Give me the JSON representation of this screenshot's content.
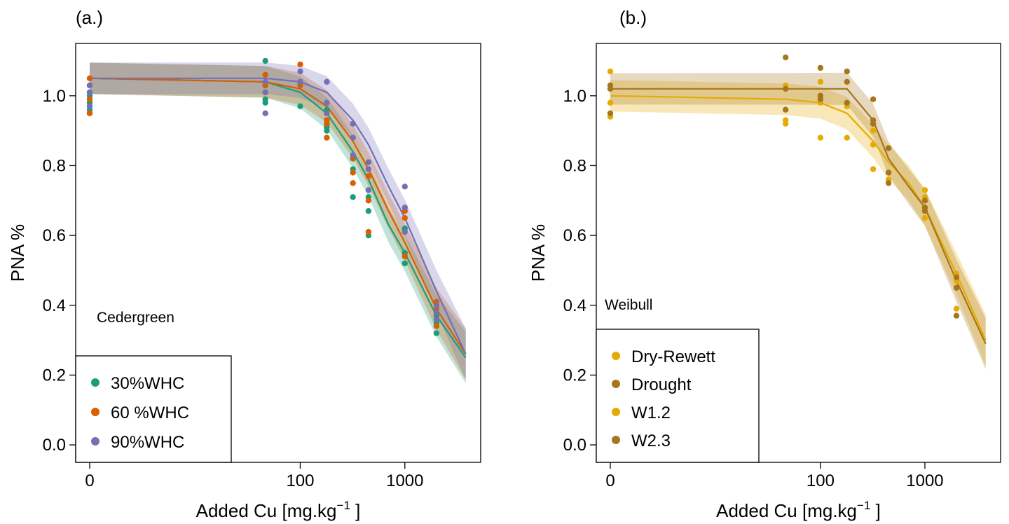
{
  "chart_data": [
    {
      "type": "scatter",
      "panel_label": "(a.)",
      "model_label": "Cedergreen",
      "xlabel": "Added Cu [mg.kg",
      "xlabel_sup": "−1",
      "xlabel_end": " ]",
      "ylabel": "PNA %",
      "x_scale": "log(x+1)",
      "x_ticks": [
        0,
        100,
        1000
      ],
      "x_tick_labels": [
        "0",
        "100",
        "1000"
      ],
      "ylim": [
        -0.05,
        1.15
      ],
      "y_ticks": [
        0.0,
        0.2,
        0.4,
        0.6,
        0.8,
        1.0
      ],
      "y_tick_labels": [
        "0.0",
        "0.2",
        "0.4",
        "0.6",
        "0.8",
        "1.0"
      ],
      "legend_position": "bottom-left",
      "series": [
        {
          "name": "30%WHC",
          "color": "#1b9e77",
          "points": [
            [
              0,
              0.98
            ],
            [
              0,
              0.95
            ],
            [
              0,
              1.0
            ],
            [
              0,
              1.03
            ],
            [
              0,
              1.01
            ],
            [
              0,
              0.96
            ],
            [
              46,
              1.1
            ],
            [
              46,
              1.03
            ],
            [
              46,
              0.99
            ],
            [
              46,
              0.98
            ],
            [
              100,
              0.97
            ],
            [
              100,
              1.03
            ],
            [
              180,
              0.96
            ],
            [
              180,
              0.9
            ],
            [
              180,
              0.91
            ],
            [
              320,
              0.79
            ],
            [
              320,
              0.71
            ],
            [
              320,
              0.82
            ],
            [
              450,
              0.6
            ],
            [
              450,
              0.67
            ],
            [
              450,
              0.71
            ],
            [
              1000,
              0.52
            ],
            [
              1000,
              0.55
            ],
            [
              1000,
              0.62
            ],
            [
              2000,
              0.32
            ],
            [
              2000,
              0.35
            ],
            [
              2000,
              0.37
            ]
          ],
          "fit": [
            [
              0,
              1.05
            ],
            [
              46,
              1.04
            ],
            [
              100,
              1.01
            ],
            [
              180,
              0.95
            ],
            [
              320,
              0.84
            ],
            [
              450,
              0.76
            ],
            [
              700,
              0.63
            ],
            [
              1000,
              0.55
            ],
            [
              2000,
              0.37
            ],
            [
              3800,
              0.25
            ]
          ]
        },
        {
          "name": "60 %WHC",
          "color": "#d95f02",
          "points": [
            [
              0,
              1.05
            ],
            [
              0,
              0.95
            ],
            [
              0,
              0.99
            ],
            [
              46,
              1.06
            ],
            [
              46,
              1.01
            ],
            [
              46,
              1.03
            ],
            [
              100,
              1.09
            ],
            [
              100,
              1.04
            ],
            [
              100,
              1.03
            ],
            [
              180,
              0.88
            ],
            [
              180,
              0.93
            ],
            [
              180,
              0.92
            ],
            [
              320,
              0.82
            ],
            [
              320,
              0.75
            ],
            [
              320,
              0.78
            ],
            [
              450,
              0.61
            ],
            [
              450,
              0.7
            ],
            [
              450,
              0.77
            ],
            [
              1000,
              0.54
            ],
            [
              1000,
              0.65
            ],
            [
              1000,
              0.67
            ],
            [
              2000,
              0.41
            ],
            [
              2000,
              0.39
            ],
            [
              2000,
              0.34
            ]
          ],
          "fit": [
            [
              0,
              1.05
            ],
            [
              46,
              1.04
            ],
            [
              100,
              1.02
            ],
            [
              180,
              0.97
            ],
            [
              320,
              0.87
            ],
            [
              450,
              0.79
            ],
            [
              700,
              0.67
            ],
            [
              1000,
              0.58
            ],
            [
              2000,
              0.39
            ],
            [
              3800,
              0.26
            ]
          ]
        },
        {
          "name": "90%WHC",
          "color": "#7570b3",
          "points": [
            [
              0,
              1.03
            ],
            [
              0,
              1.01
            ],
            [
              0,
              0.97
            ],
            [
              46,
              0.95
            ],
            [
              46,
              1.01
            ],
            [
              46,
              1.04
            ],
            [
              100,
              1.07
            ],
            [
              100,
              1.04
            ],
            [
              180,
              1.04
            ],
            [
              180,
              0.98
            ],
            [
              180,
              0.95
            ],
            [
              320,
              0.92
            ],
            [
              320,
              0.88
            ],
            [
              320,
              0.83
            ],
            [
              450,
              0.81
            ],
            [
              450,
              0.79
            ],
            [
              450,
              0.73
            ],
            [
              1000,
              0.74
            ],
            [
              1000,
              0.68
            ],
            [
              1000,
              0.61
            ],
            [
              2000,
              0.38
            ],
            [
              2000,
              0.36
            ],
            [
              2000,
              0.4
            ]
          ],
          "fit": [
            [
              0,
              1.05
            ],
            [
              46,
              1.05
            ],
            [
              100,
              1.04
            ],
            [
              180,
              1.01
            ],
            [
              320,
              0.93
            ],
            [
              450,
              0.86
            ],
            [
              700,
              0.74
            ],
            [
              1000,
              0.65
            ],
            [
              2000,
              0.44
            ],
            [
              3800,
              0.26
            ]
          ]
        }
      ]
    },
    {
      "type": "scatter",
      "panel_label": "(b.)",
      "model_label": "Weibull",
      "xlabel": "Added Cu [mg.kg",
      "xlabel_sup": "−1",
      "xlabel_end": " ]",
      "ylabel": "PNA %",
      "x_scale": "log(x+1)",
      "x_ticks": [
        0,
        100,
        1000
      ],
      "x_tick_labels": [
        "0",
        "100",
        "1000"
      ],
      "ylim": [
        -0.05,
        1.15
      ],
      "y_ticks": [
        0.0,
        0.2,
        0.4,
        0.6,
        0.8,
        1.0
      ],
      "y_tick_labels": [
        "0.0",
        "0.2",
        "0.4",
        "0.6",
        "0.8",
        "1.0"
      ],
      "legend_position": "bottom-left",
      "legend": [
        {
          "name": "Dry-Rewett",
          "color": "#e6ab02"
        },
        {
          "name": "Drought",
          "color": "#a6761d"
        },
        {
          "name": "W1.2",
          "color": "#e6ab02"
        },
        {
          "name": "W2.3",
          "color": "#a6761d"
        }
      ],
      "series": [
        {
          "name": "Dry-Rewett",
          "color": "#e6ab02",
          "points": [
            [
              0,
              1.07
            ],
            [
              0,
              0.98
            ],
            [
              0,
              0.94
            ],
            [
              46,
              0.93
            ],
            [
              46,
              0.92
            ],
            [
              46,
              1.03
            ],
            [
              100,
              0.88
            ],
            [
              100,
              0.98
            ],
            [
              100,
              1.04
            ],
            [
              180,
              0.88
            ],
            [
              180,
              0.97
            ],
            [
              320,
              0.9
            ],
            [
              320,
              0.86
            ],
            [
              320,
              0.79
            ],
            [
              450,
              0.78
            ],
            [
              450,
              0.76
            ],
            [
              1000,
              0.73
            ],
            [
              1000,
              0.71
            ],
            [
              1000,
              0.65
            ],
            [
              2000,
              0.49
            ],
            [
              2000,
              0.47
            ],
            [
              2000,
              0.39
            ]
          ],
          "fit": [
            [
              0,
              1.0
            ],
            [
              46,
              0.99
            ],
            [
              100,
              0.98
            ],
            [
              180,
              0.95
            ],
            [
              320,
              0.87
            ],
            [
              450,
              0.81
            ],
            [
              700,
              0.75
            ],
            [
              1000,
              0.68
            ],
            [
              2000,
              0.49
            ],
            [
              3800,
              0.3
            ]
          ]
        },
        {
          "name": "Drought",
          "color": "#a6761d",
          "points": [
            [
              0,
              1.03
            ],
            [
              0,
              1.02
            ],
            [
              0,
              0.95
            ],
            [
              46,
              1.11
            ],
            [
              46,
              1.02
            ],
            [
              46,
              0.96
            ],
            [
              100,
              1.08
            ],
            [
              100,
              1.0
            ],
            [
              100,
              0.99
            ],
            [
              180,
              1.07
            ],
            [
              180,
              1.04
            ],
            [
              180,
              0.98
            ],
            [
              320,
              0.99
            ],
            [
              320,
              0.93
            ],
            [
              320,
              0.92
            ],
            [
              450,
              0.85
            ],
            [
              450,
              0.78
            ],
            [
              450,
              0.75
            ],
            [
              1000,
              0.7
            ],
            [
              1000,
              0.68
            ],
            [
              1000,
              0.67
            ],
            [
              2000,
              0.48
            ],
            [
              2000,
              0.45
            ],
            [
              2000,
              0.37
            ]
          ],
          "fit": [
            [
              0,
              1.02
            ],
            [
              46,
              1.02
            ],
            [
              100,
              1.02
            ],
            [
              180,
              1.02
            ],
            [
              320,
              0.93
            ],
            [
              450,
              0.82
            ],
            [
              700,
              0.74
            ],
            [
              1000,
              0.68
            ],
            [
              2000,
              0.47
            ],
            [
              3800,
              0.29
            ]
          ]
        }
      ]
    }
  ]
}
